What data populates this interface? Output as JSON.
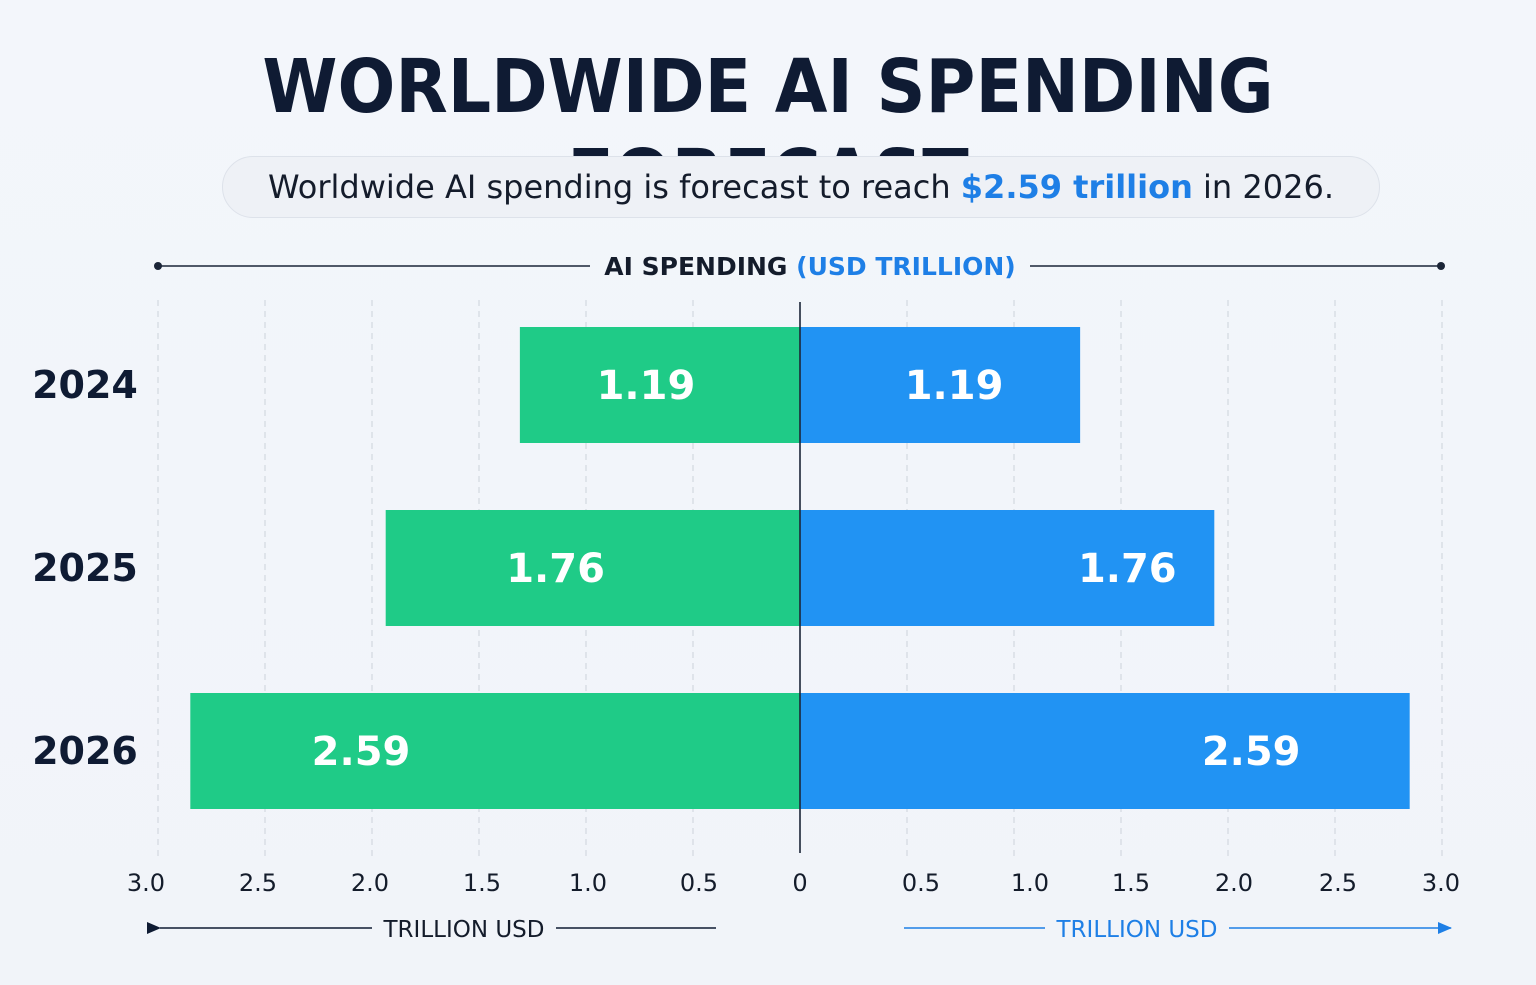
{
  "title": "WORLDWIDE AI SPENDING FORECAST",
  "subtitle": {
    "prefix": "Worldwide AI spending is forecast to reach ",
    "highlight": "$2.59 trillion",
    "suffix": " in 2026."
  },
  "colors": {
    "green": "#1fcb87",
    "blue": "#2193f3",
    "title": "#0f1b33",
    "accent_text": "#1e7fe6"
  },
  "chart_data": {
    "type": "bar",
    "orientation": "horizontal-butterfly",
    "title": "AI SPENDING",
    "title_unit": "(USD TRILLION)",
    "categories": [
      "2024",
      "2025",
      "2026"
    ],
    "series": [
      {
        "side": "left",
        "values": [
          1.19,
          1.76,
          2.59
        ],
        "labels": [
          "1.19",
          "1.76",
          "2.59"
        ]
      },
      {
        "side": "right",
        "values": [
          1.19,
          1.76,
          2.59
        ],
        "labels": [
          "1.19",
          "1.76",
          "2.59"
        ]
      }
    ],
    "xlim": [
      0,
      3.0
    ],
    "left_ticks": [
      "3.0",
      "2.5",
      "2.0",
      "1.5",
      "1.0",
      "0.5"
    ],
    "center_tick": "0",
    "right_ticks": [
      "0.5",
      "1.0",
      "1.5",
      "2.0",
      "2.5",
      "3.0"
    ],
    "tick_values": [
      0.5,
      1.0,
      1.5,
      2.0,
      2.5,
      3.0
    ],
    "left_axis_label": "TRILLION USD",
    "right_axis_label": "TRILLION USD",
    "grid": "vertical-dashed"
  }
}
